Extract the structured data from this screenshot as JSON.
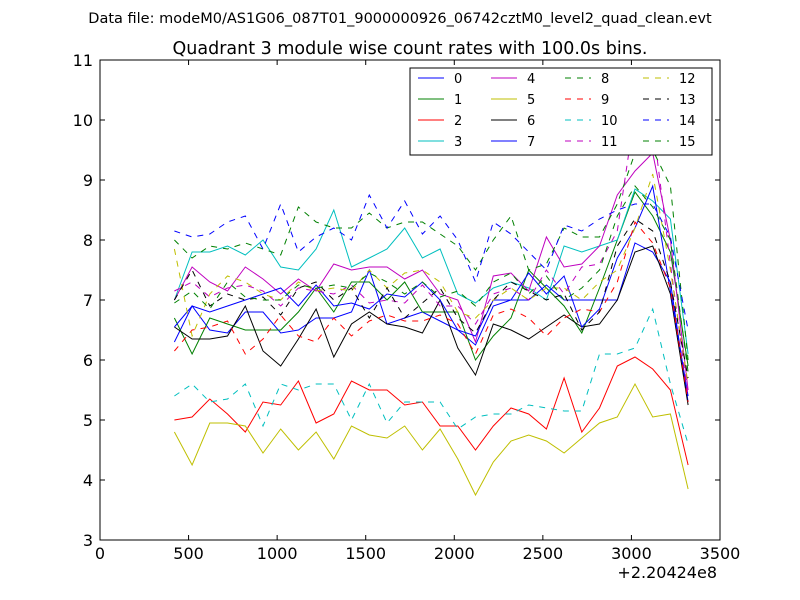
{
  "suptitle": "Data file: modeM0/AS1G06_087T01_9000000926_06742cztM0_level2_quad_clean.evt",
  "chart_data": {
    "type": "line",
    "title": "Quadrant 3 module wise count rates with 100.0s bins.",
    "xlabel": "",
    "ylabel": "",
    "offset_label": "+2.20424e8",
    "xlim": [
      0,
      3500
    ],
    "ylim": [
      3,
      11
    ],
    "xticks": [
      0,
      500,
      1000,
      1500,
      2000,
      2500,
      3000,
      3500
    ],
    "yticks": [
      3,
      4,
      5,
      6,
      7,
      8,
      9,
      10,
      11
    ],
    "legend_position": "top-right",
    "legend_columns": 4,
    "x": [
      420,
      520,
      620,
      720,
      820,
      920,
      1020,
      1120,
      1220,
      1320,
      1420,
      1520,
      1620,
      1720,
      1820,
      1920,
      2020,
      2120,
      2220,
      2320,
      2420,
      2520,
      2620,
      2720,
      2820,
      2920,
      3020,
      3120,
      3220,
      3320
    ],
    "series": [
      {
        "name": "0",
        "color": "#0000ff",
        "dash": "solid",
        "values": [
          6.3,
          6.9,
          6.5,
          6.45,
          6.8,
          6.8,
          6.45,
          6.5,
          6.7,
          6.7,
          6.8,
          7.5,
          6.6,
          6.7,
          6.8,
          6.65,
          6.5,
          6.25,
          6.9,
          7.0,
          7.0,
          7.25,
          7.0,
          7.0,
          7.0,
          7.0,
          7.95,
          7.8,
          7.3,
          5.3
        ]
      },
      {
        "name": "1",
        "color": "#008000",
        "dash": "solid",
        "values": [
          6.7,
          6.1,
          6.7,
          6.6,
          6.5,
          6.5,
          6.5,
          6.8,
          7.2,
          6.8,
          7.3,
          7.3,
          7.0,
          7.3,
          6.8,
          6.8,
          6.8,
          6.0,
          6.4,
          6.7,
          7.5,
          7.2,
          6.9,
          6.45,
          7.2,
          8.0,
          8.8,
          8.4,
          7.8,
          5.9
        ]
      },
      {
        "name": "2",
        "color": "#ff0000",
        "dash": "solid",
        "values": [
          5.0,
          5.05,
          5.35,
          5.1,
          4.8,
          5.3,
          5.25,
          5.65,
          4.95,
          5.1,
          5.65,
          5.5,
          5.5,
          5.25,
          5.3,
          4.9,
          4.9,
          4.5,
          4.9,
          5.2,
          5.1,
          4.85,
          5.7,
          4.8,
          5.2,
          5.9,
          6.05,
          5.85,
          5.5,
          4.25
        ]
      },
      {
        "name": "3",
        "color": "#00bfbf",
        "dash": "solid",
        "values": [
          7.0,
          7.8,
          7.8,
          7.9,
          7.75,
          8.0,
          7.55,
          7.5,
          7.85,
          8.5,
          7.55,
          7.7,
          7.85,
          8.2,
          7.7,
          7.85,
          7.1,
          6.95,
          7.2,
          7.3,
          7.2,
          7.0,
          7.9,
          7.8,
          7.9,
          8.0,
          8.85,
          8.65,
          8.35,
          6.1
        ]
      },
      {
        "name": "4",
        "color": "#bf00bf",
        "dash": "solid",
        "values": [
          7.0,
          7.55,
          7.3,
          7.15,
          7.55,
          7.35,
          7.1,
          7.35,
          7.15,
          7.6,
          7.5,
          7.55,
          7.55,
          7.35,
          7.5,
          7.1,
          7.0,
          6.3,
          7.4,
          7.45,
          7.15,
          8.05,
          7.55,
          7.6,
          7.9,
          8.75,
          9.15,
          9.45,
          8.0,
          5.5
        ]
      },
      {
        "name": "5",
        "color": "#bfbf00",
        "dash": "solid",
        "values": [
          4.8,
          4.25,
          4.95,
          4.95,
          4.9,
          4.45,
          4.85,
          4.5,
          4.8,
          4.35,
          4.9,
          4.75,
          4.7,
          4.9,
          4.5,
          4.85,
          4.35,
          3.75,
          4.3,
          4.65,
          4.75,
          4.65,
          4.45,
          4.7,
          4.95,
          5.05,
          5.6,
          5.05,
          5.1,
          3.85
        ]
      },
      {
        "name": "6",
        "color": "#000000",
        "dash": "solid",
        "values": [
          6.55,
          6.35,
          6.35,
          6.4,
          6.9,
          6.15,
          5.9,
          6.35,
          6.85,
          6.05,
          6.6,
          6.8,
          6.6,
          6.55,
          6.45,
          7.0,
          6.2,
          5.75,
          6.6,
          6.5,
          6.35,
          6.55,
          6.75,
          6.55,
          6.6,
          7.0,
          7.8,
          7.9,
          7.1,
          5.25
        ]
      },
      {
        "name": "7",
        "color": "#0000ff",
        "dash": "solid",
        "values": [
          6.55,
          6.9,
          6.8,
          6.9,
          7.0,
          7.1,
          7.2,
          6.9,
          7.25,
          6.9,
          6.95,
          6.85,
          7.1,
          7.05,
          7.3,
          7.0,
          6.5,
          6.4,
          7.0,
          7.0,
          7.45,
          7.1,
          7.4,
          6.55,
          6.85,
          7.7,
          8.2,
          8.9,
          7.15,
          5.4
        ]
      },
      {
        "name": "8",
        "color": "#008000",
        "dash": "dashed",
        "values": [
          8.0,
          7.7,
          7.9,
          7.85,
          7.95,
          7.85,
          7.75,
          8.55,
          8.3,
          8.2,
          8.2,
          8.45,
          8.2,
          8.3,
          8.3,
          8.1,
          7.9,
          7.5,
          8.0,
          8.4,
          7.5,
          7.6,
          8.2,
          8.05,
          8.05,
          8.6,
          9.45,
          9.5,
          8.9,
          6.0
        ]
      },
      {
        "name": "9",
        "color": "#ff0000",
        "dash": "dashed",
        "values": [
          6.15,
          6.5,
          6.55,
          6.65,
          6.1,
          6.35,
          6.75,
          6.4,
          6.3,
          6.7,
          6.4,
          6.65,
          6.75,
          6.65,
          6.65,
          6.75,
          6.6,
          6.1,
          6.75,
          6.85,
          6.7,
          6.4,
          6.7,
          6.85,
          6.8,
          7.3,
          8.3,
          7.95,
          7.2,
          5.3
        ]
      },
      {
        "name": "10",
        "color": "#00bfbf",
        "dash": "dashed",
        "values": [
          5.4,
          5.6,
          5.3,
          5.35,
          5.6,
          4.9,
          5.6,
          5.5,
          5.6,
          5.6,
          5.0,
          5.6,
          4.95,
          5.3,
          5.3,
          5.3,
          4.85,
          5.05,
          5.1,
          5.1,
          5.25,
          5.2,
          5.15,
          5.15,
          6.1,
          6.1,
          6.2,
          6.85,
          5.6,
          4.6
        ]
      },
      {
        "name": "11",
        "color": "#bf00bf",
        "dash": "dashed",
        "values": [
          7.15,
          7.3,
          7.05,
          7.2,
          7.25,
          7.15,
          6.9,
          7.2,
          7.15,
          7.1,
          7.25,
          6.95,
          7.0,
          6.95,
          7.25,
          6.9,
          6.9,
          6.6,
          7.1,
          7.2,
          7.0,
          7.5,
          7.1,
          7.55,
          7.6,
          8.15,
          10.15,
          9.95,
          7.6,
          5.4
        ]
      },
      {
        "name": "12",
        "color": "#bfbf00",
        "dash": "dashed",
        "values": [
          7.85,
          6.4,
          7.1,
          7.4,
          7.3,
          7.1,
          7.0,
          7.3,
          7.15,
          7.2,
          7.15,
          7.5,
          7.2,
          7.45,
          7.5,
          7.3,
          6.8,
          6.7,
          7.0,
          7.2,
          7.0,
          7.2,
          7.2,
          7.0,
          7.3,
          7.5,
          8.2,
          9.1,
          7.5,
          5.6
        ]
      },
      {
        "name": "13",
        "color": "#000000",
        "dash": "dashed",
        "values": [
          7.0,
          7.5,
          6.9,
          7.1,
          7.0,
          7.05,
          6.75,
          7.2,
          7.3,
          7.0,
          7.2,
          6.7,
          7.2,
          6.7,
          6.95,
          7.2,
          6.7,
          6.45,
          7.0,
          7.3,
          7.15,
          7.0,
          7.1,
          6.5,
          6.8,
          7.9,
          8.35,
          8.15,
          7.3,
          5.7
        ]
      },
      {
        "name": "14",
        "color": "#0000ff",
        "dash": "dashed",
        "values": [
          8.15,
          8.05,
          8.1,
          8.3,
          8.4,
          7.85,
          8.6,
          7.8,
          8.05,
          8.2,
          8.0,
          8.75,
          8.2,
          8.65,
          8.1,
          8.4,
          8.0,
          7.3,
          8.3,
          8.1,
          7.8,
          7.5,
          8.25,
          8.15,
          8.35,
          8.5,
          8.6,
          8.6,
          8.05,
          6.5
        ]
      },
      {
        "name": "15",
        "color": "#008000",
        "dash": "dashed",
        "values": [
          6.95,
          7.15,
          6.85,
          7.3,
          7.05,
          7.0,
          7.0,
          7.25,
          7.2,
          7.25,
          7.2,
          7.45,
          7.3,
          7.1,
          7.3,
          7.05,
          7.15,
          6.9,
          7.3,
          7.45,
          7.1,
          7.4,
          7.0,
          7.2,
          7.5,
          8.4,
          8.9,
          8.55,
          8.0,
          5.8
        ]
      }
    ]
  }
}
